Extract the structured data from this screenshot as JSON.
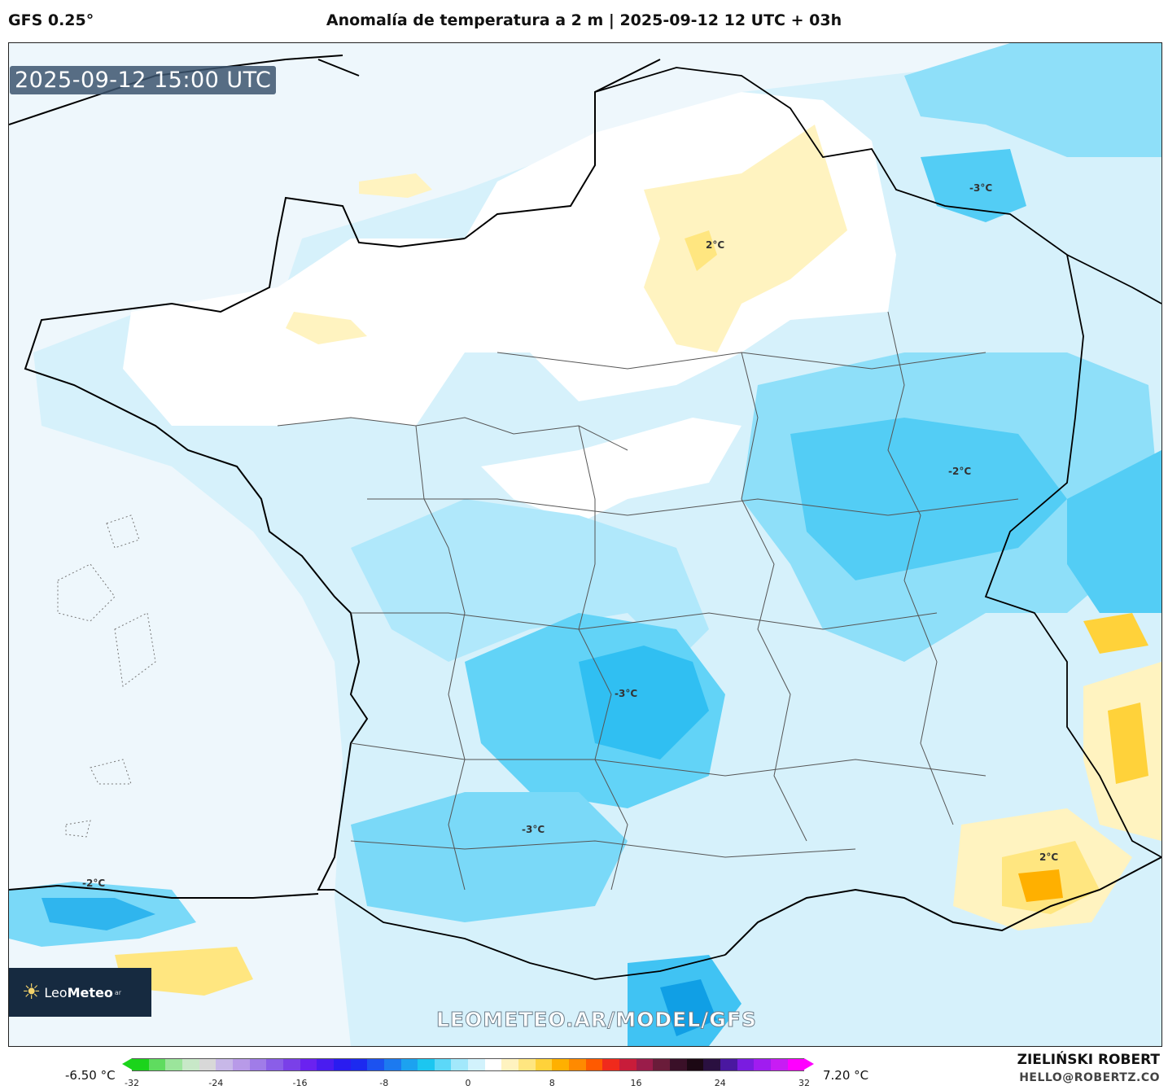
{
  "header": {
    "model": "GFS 0.25°",
    "title": "Anomalía de temperatura a 2 m | 2025-09-12 12 UTC + 03h"
  },
  "map": {
    "valid_time": "2025-09-12 15:00 UTC",
    "watermark": "LEOMETEO.AR/MODEL/GFS",
    "contour_labels": [
      "-3°C",
      "2°C",
      "-2°C",
      "-3°C",
      "-3°C",
      "-2°C",
      "2°C"
    ]
  },
  "logo": {
    "brand_prefix": "Leo",
    "brand_bold": "Meteo",
    "tld": "ar"
  },
  "legend": {
    "min_value": "-6.50 °C",
    "max_value": "7.20 °C",
    "ticks": [
      "-32",
      "-24",
      "-16",
      "-8",
      "0",
      "8",
      "16",
      "24",
      "32"
    ],
    "colors": [
      "#1bd41b",
      "#5fdc5f",
      "#9be59b",
      "#c8e8c8",
      "#d8d8d8",
      "#c8b8e8",
      "#b89ae8",
      "#a07ce8",
      "#8a5ee8",
      "#7a40e8",
      "#6a22f0",
      "#4a1cf0",
      "#2a1cf0",
      "#1c2af0",
      "#1c52f0",
      "#1c7af0",
      "#1ca2f0",
      "#1cc6f0",
      "#5cd8f8",
      "#a2e8fb",
      "#d2f2fc",
      "#ffffff",
      "#fff3c0",
      "#ffe680",
      "#ffd23a",
      "#ffb000",
      "#ff8a00",
      "#ff5a00",
      "#f02a1c",
      "#c81c3a",
      "#9a1c4a",
      "#6a1c3a",
      "#3a1028",
      "#1c0814",
      "#2a1040",
      "#4a18a0",
      "#7a1ce0",
      "#a01cf0",
      "#c81cf4",
      "#ff00ff"
    ],
    "arrow_low_color": "#1bd41b",
    "arrow_high_color": "#ff00ff"
  },
  "footer": {
    "author": "ZIELIŃSKI ROBERT",
    "email": "HELLO@ROBERTZ.CO"
  }
}
